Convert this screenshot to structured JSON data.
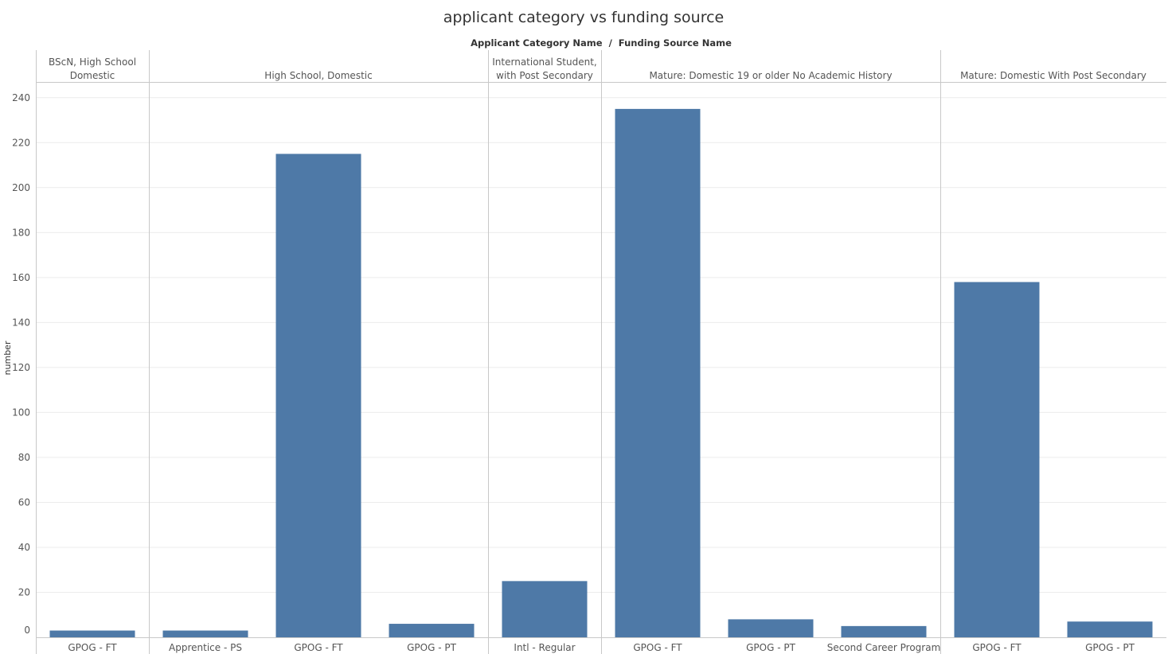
{
  "chart_data": {
    "type": "bar",
    "title": "applicant category vs funding source",
    "header_title": "Applicant Category Name  /  Funding Source Name",
    "ylabel": "number",
    "xlabel": "",
    "ylim": [
      0,
      250
    ],
    "yticks": [
      0,
      20,
      40,
      60,
      80,
      100,
      120,
      140,
      160,
      180,
      200,
      220,
      240
    ],
    "grid": true,
    "bar_color": "#4e79a7",
    "groups": [
      {
        "name": "BScN, High School Domestic",
        "label_lines": [
          "BScN, High School",
          "Domestic"
        ],
        "categories": [
          "GPOG - FT"
        ],
        "values": [
          3
        ]
      },
      {
        "name": "High School, Domestic",
        "label_lines": [
          "High School, Domestic"
        ],
        "categories": [
          "Apprentice - PS",
          "GPOG - FT",
          "GPOG - PT"
        ],
        "values": [
          3,
          215,
          6
        ]
      },
      {
        "name": "International Student, with Post Secondary",
        "label_lines": [
          "International Student,",
          "with Post Secondary"
        ],
        "categories": [
          "Intl - Regular"
        ],
        "values": [
          25
        ]
      },
      {
        "name": "Mature: Domestic 19 or older No Academic History",
        "label_lines": [
          "Mature: Domestic 19 or older No Academic History"
        ],
        "categories": [
          "GPOG - FT",
          "GPOG - PT",
          "Second Career Program"
        ],
        "values": [
          235,
          8,
          5
        ]
      },
      {
        "name": "Mature: Domestic  With Post Secondary",
        "label_lines": [
          "Mature: Domestic  With Post Secondary"
        ],
        "categories": [
          "GPOG - FT",
          "GPOG - PT"
        ],
        "values": [
          158,
          7
        ]
      }
    ]
  }
}
